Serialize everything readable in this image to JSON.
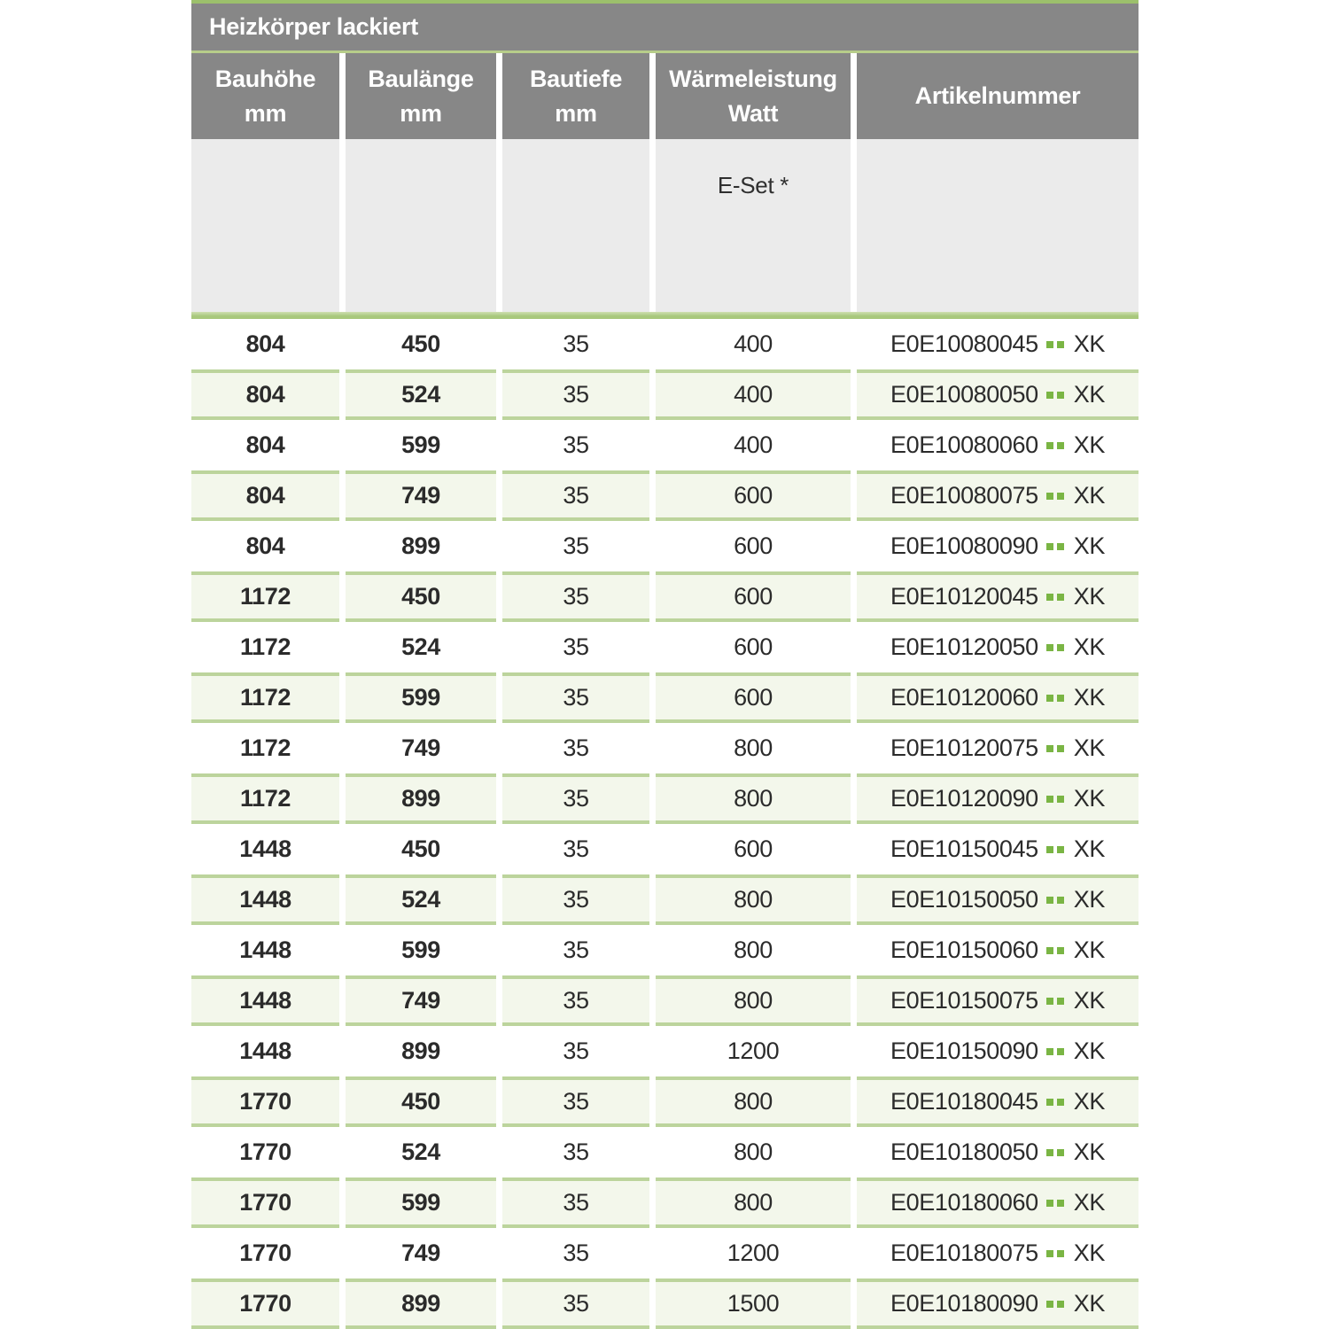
{
  "table": {
    "title": "Heizkörper lackiert",
    "columns": [
      {
        "label": "Bauhöhe",
        "unit": "mm"
      },
      {
        "label": "Baulänge",
        "unit": "mm"
      },
      {
        "label": "Bautiefe",
        "unit": "mm"
      },
      {
        "label": "Wärmeleistung",
        "unit": "Watt"
      },
      {
        "label": "Artikelnummer",
        "unit": ""
      }
    ],
    "subheader": {
      "eset_label": "E-Set *"
    },
    "artikel_placeholder_dots": "..",
    "rows": [
      {
        "bauhoehe": "804",
        "baulaenge": "450",
        "bautiefe": "35",
        "watt": "400",
        "artikel_prefix": "E0E10080045",
        "artikel_suffix": "XK",
        "shaded": false
      },
      {
        "bauhoehe": "804",
        "baulaenge": "524",
        "bautiefe": "35",
        "watt": "400",
        "artikel_prefix": "E0E10080050",
        "artikel_suffix": "XK",
        "shaded": true
      },
      {
        "bauhoehe": "804",
        "baulaenge": "599",
        "bautiefe": "35",
        "watt": "400",
        "artikel_prefix": "E0E10080060",
        "artikel_suffix": "XK",
        "shaded": false
      },
      {
        "bauhoehe": "804",
        "baulaenge": "749",
        "bautiefe": "35",
        "watt": "600",
        "artikel_prefix": "E0E10080075",
        "artikel_suffix": "XK",
        "shaded": true
      },
      {
        "bauhoehe": "804",
        "baulaenge": "899",
        "bautiefe": "35",
        "watt": "600",
        "artikel_prefix": "E0E10080090",
        "artikel_suffix": "XK",
        "shaded": false
      },
      {
        "bauhoehe": "1172",
        "baulaenge": "450",
        "bautiefe": "35",
        "watt": "600",
        "artikel_prefix": "E0E10120045",
        "artikel_suffix": "XK",
        "shaded": true
      },
      {
        "bauhoehe": "1172",
        "baulaenge": "524",
        "bautiefe": "35",
        "watt": "600",
        "artikel_prefix": "E0E10120050",
        "artikel_suffix": "XK",
        "shaded": false
      },
      {
        "bauhoehe": "1172",
        "baulaenge": "599",
        "bautiefe": "35",
        "watt": "600",
        "artikel_prefix": "E0E10120060",
        "artikel_suffix": "XK",
        "shaded": true
      },
      {
        "bauhoehe": "1172",
        "baulaenge": "749",
        "bautiefe": "35",
        "watt": "800",
        "artikel_prefix": "E0E10120075",
        "artikel_suffix": "XK",
        "shaded": false
      },
      {
        "bauhoehe": "1172",
        "baulaenge": "899",
        "bautiefe": "35",
        "watt": "800",
        "artikel_prefix": "E0E10120090",
        "artikel_suffix": "XK",
        "shaded": true
      },
      {
        "bauhoehe": "1448",
        "baulaenge": "450",
        "bautiefe": "35",
        "watt": "600",
        "artikel_prefix": "E0E10150045",
        "artikel_suffix": "XK",
        "shaded": false
      },
      {
        "bauhoehe": "1448",
        "baulaenge": "524",
        "bautiefe": "35",
        "watt": "800",
        "artikel_prefix": "E0E10150050",
        "artikel_suffix": "XK",
        "shaded": true
      },
      {
        "bauhoehe": "1448",
        "baulaenge": "599",
        "bautiefe": "35",
        "watt": "800",
        "artikel_prefix": "E0E10150060",
        "artikel_suffix": "XK",
        "shaded": false
      },
      {
        "bauhoehe": "1448",
        "baulaenge": "749",
        "bautiefe": "35",
        "watt": "800",
        "artikel_prefix": "E0E10150075",
        "artikel_suffix": "XK",
        "shaded": true
      },
      {
        "bauhoehe": "1448",
        "baulaenge": "899",
        "bautiefe": "35",
        "watt": "1200",
        "artikel_prefix": "E0E10150090",
        "artikel_suffix": "XK",
        "shaded": false
      },
      {
        "bauhoehe": "1770",
        "baulaenge": "450",
        "bautiefe": "35",
        "watt": "800",
        "artikel_prefix": "E0E10180045",
        "artikel_suffix": "XK",
        "shaded": true
      },
      {
        "bauhoehe": "1770",
        "baulaenge": "524",
        "bautiefe": "35",
        "watt": "800",
        "artikel_prefix": "E0E10180050",
        "artikel_suffix": "XK",
        "shaded": false
      },
      {
        "bauhoehe": "1770",
        "baulaenge": "599",
        "bautiefe": "35",
        "watt": "800",
        "artikel_prefix": "E0E10180060",
        "artikel_suffix": "XK",
        "shaded": true
      },
      {
        "bauhoehe": "1770",
        "baulaenge": "749",
        "bautiefe": "35",
        "watt": "1200",
        "artikel_prefix": "E0E10180075",
        "artikel_suffix": "XK",
        "shaded": false
      },
      {
        "bauhoehe": "1770",
        "baulaenge": "899",
        "bautiefe": "35",
        "watt": "1500",
        "artikel_prefix": "E0E10180090",
        "artikel_suffix": "XK",
        "shaded": true
      }
    ],
    "colors": {
      "header_gray": "#878787",
      "subheader_gray": "#ebebeb",
      "accent_green_line": "#9cc06c",
      "row_border_green": "#bcd49c",
      "row_fill_green": "#f3f7eb",
      "dot_green": "#7ab544",
      "text_dark": "#2b2b2b",
      "header_text": "#ffffff"
    }
  }
}
